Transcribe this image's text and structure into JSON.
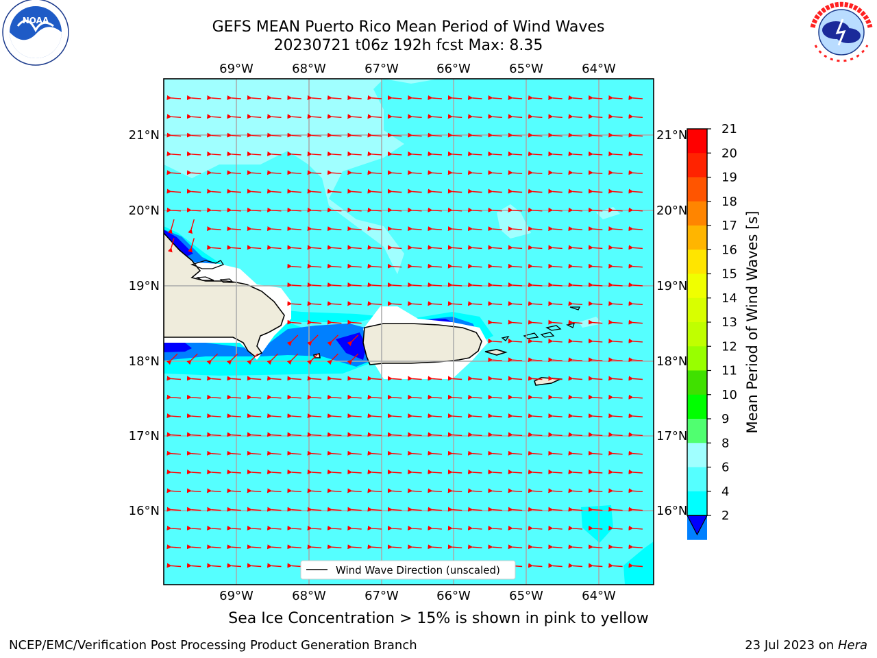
{
  "header": {
    "title_line1": "GEFS MEAN Puerto Rico Mean Period of Wind Waves",
    "title_line2": "20230721 t06z 192h fcst   Max: 8.35"
  },
  "logos": {
    "left": {
      "name": "NOAA",
      "ring_text": "NATIONAL OCEANIC AND ATMOSPHERIC ADMINISTRATION · U.S. DEPARTMENT OF COMMERCE"
    },
    "right": {
      "name": "NATIONAL WEATHER SERVICE"
    }
  },
  "map": {
    "lon_labels": [
      "69°W",
      "68°W",
      "67°W",
      "66°W",
      "65°W",
      "64°W"
    ],
    "lat_labels": [
      "21°N",
      "20°N",
      "19°N",
      "18°N",
      "17°N",
      "16°N"
    ],
    "legend_label": "Wind Wave Direction (unscaled)",
    "ocean_color": "#55ffff",
    "land_color": "#efecdc",
    "arrow_color": "#ff0000",
    "wind_direction": "westward"
  },
  "colorbar": {
    "label": "Mean Period of Wind Waves [s]",
    "ticks": [
      "21",
      "20",
      "19",
      "18",
      "17",
      "16",
      "15",
      "14",
      "13",
      "12",
      "11",
      "10",
      "9",
      "8",
      "6",
      "4",
      "2"
    ],
    "colors": [
      "#ff0000",
      "#ff2300",
      "#ff5500",
      "#ff8500",
      "#ffb500",
      "#ffe500",
      "#f0ff00",
      "#d8ff00",
      "#c0ff00",
      "#98ff00",
      "#40e000",
      "#00ff00",
      "#50ff70",
      "#a0ffff",
      "#55ffff",
      "#00ffff",
      "#0080ff",
      "#0000ff"
    ]
  },
  "footer": {
    "sea_ice_note": "Sea Ice Concentration > 15% is shown in pink to yellow",
    "branch": "NCEP/EMC/Verification Post Processing Product Generation Branch",
    "date_prefix": "23 Jul 2023 on ",
    "machine": "Hera"
  }
}
